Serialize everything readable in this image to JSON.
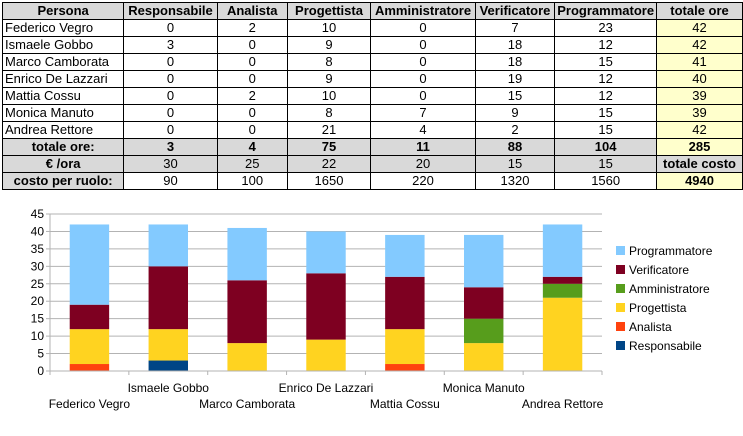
{
  "table": {
    "headers": [
      "Persona",
      "Responsabile",
      "Analista",
      "Progettista",
      "Amministratore",
      "Verificatore",
      "Programmatore",
      "totale ore"
    ],
    "rows": [
      [
        "Federico Vegro",
        "0",
        "2",
        "10",
        "0",
        "7",
        "23",
        "42"
      ],
      [
        "Ismaele Gobbo",
        "3",
        "0",
        "9",
        "0",
        "18",
        "12",
        "42"
      ],
      [
        "Marco Camborata",
        "0",
        "0",
        "8",
        "0",
        "18",
        "15",
        "41"
      ],
      [
        "Enrico De Lazzari",
        "0",
        "0",
        "9",
        "0",
        "19",
        "12",
        "40"
      ],
      [
        "Mattia Cossu",
        "0",
        "2",
        "10",
        "0",
        "15",
        "12",
        "39"
      ],
      [
        "Monica Manuto",
        "0",
        "0",
        "8",
        "7",
        "9",
        "15",
        "39"
      ],
      [
        "Andrea Rettore",
        "0",
        "0",
        "21",
        "4",
        "2",
        "15",
        "42"
      ]
    ],
    "totals": [
      "totale ore:",
      "3",
      "4",
      "75",
      "11",
      "88",
      "104",
      "285"
    ],
    "rates": [
      "€ /ora",
      "30",
      "25",
      "22",
      "20",
      "15",
      "15",
      "totale costo"
    ],
    "costs": [
      "costo per ruolo:",
      "90",
      "100",
      "1650",
      "220",
      "1320",
      "1560",
      "4940"
    ]
  },
  "chart_data": {
    "type": "bar",
    "stacked": true,
    "categories": [
      "Federico Vegro",
      "Ismaele Gobbo",
      "Marco Camborata",
      "Enrico De Lazzari",
      "Mattia Cossu",
      "Monica Manuto",
      "Andrea Rettore"
    ],
    "series": [
      {
        "name": "Responsabile",
        "color": "#004586",
        "values": [
          0,
          3,
          0,
          0,
          0,
          0,
          0
        ]
      },
      {
        "name": "Analista",
        "color": "#ff420e",
        "values": [
          2,
          0,
          0,
          0,
          2,
          0,
          0
        ]
      },
      {
        "name": "Progettista",
        "color": "#ffd320",
        "values": [
          10,
          9,
          8,
          9,
          10,
          8,
          21
        ]
      },
      {
        "name": "Amministratore",
        "color": "#579d1c",
        "values": [
          0,
          0,
          0,
          0,
          0,
          7,
          4
        ]
      },
      {
        "name": "Verificatore",
        "color": "#7e0021",
        "values": [
          7,
          18,
          18,
          19,
          15,
          9,
          2
        ]
      },
      {
        "name": "Programmatore",
        "color": "#83caff",
        "values": [
          23,
          12,
          15,
          12,
          12,
          15,
          15
        ]
      }
    ],
    "ylim": [
      0,
      45
    ],
    "yticks": [
      0,
      5,
      10,
      15,
      20,
      25,
      30,
      35,
      40,
      45
    ],
    "grid": true,
    "legend": "right"
  }
}
